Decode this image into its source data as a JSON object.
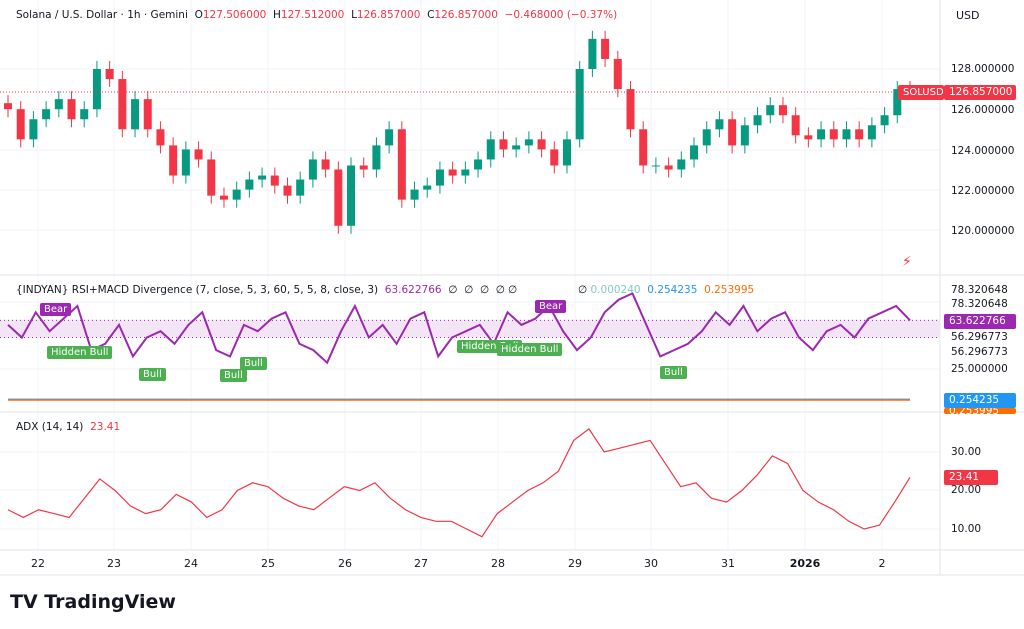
{
  "header": {
    "symbol": "Solana / U.S. Dollar · 1h · Gemini",
    "o_label": "O",
    "o": "127.506000",
    "h_label": "H",
    "h": "127.512000",
    "l_label": "L",
    "l": "126.857000",
    "c_label": "C",
    "c": "126.857000",
    "change": "−0.468000 (−0.37%)"
  },
  "currency": "USD",
  "price_tag": {
    "symbol": "SOLUSD",
    "value": "126.857000"
  },
  "colors": {
    "up": "#089981",
    "down": "#f23645",
    "rsi": "#9c27b0",
    "adx": "#f23645",
    "macd": "#2196f3",
    "signal": "#ff6d00"
  },
  "chart_data": [
    {
      "type": "candlestick",
      "title": "Solana / U.S. Dollar",
      "ylim": [
        118.5,
        130
      ],
      "y_ticks": [
        "128.000000",
        "126.000000",
        "124.000000",
        "122.000000",
        "120.000000"
      ],
      "closes": [
        126,
        124.5,
        125.5,
        126,
        126.5,
        125.5,
        126,
        128,
        127.5,
        125,
        126.5,
        125,
        124.2,
        122.7,
        124,
        123.5,
        121.7,
        121.5,
        122,
        122.5,
        122.7,
        122.2,
        121.7,
        122.5,
        123.5,
        123,
        120.2,
        123.2,
        123,
        124.2,
        125,
        121.5,
        122,
        122.2,
        123,
        122.7,
        123,
        123.5,
        124.5,
        124,
        124.2,
        124.5,
        124,
        123.2,
        124.5,
        128,
        129.5,
        128.5,
        127,
        125,
        123.2,
        123.2,
        123,
        123.5,
        124.2,
        125,
        125.5,
        124.2,
        125.2,
        125.7,
        126.2,
        125.7,
        124.7,
        124.5,
        125,
        124.5,
        125,
        124.5,
        125.2,
        125.7,
        127,
        126.857
      ]
    },
    {
      "type": "line",
      "title": "{INDYAN} RSI+MACD Divergence (7, close, 5, 3, 60, 5, 5, 8, close, 3)",
      "value": "63.622766",
      "na": [
        "∅",
        "∅",
        "∅",
        "∅",
        "∅",
        "∅"
      ],
      "macd_value": "0.000240",
      "v2": "0.254235",
      "v3": "0.253995",
      "y_ticks": [
        "78.320648",
        "78.320648",
        "56.296773",
        "56.296773",
        "25.000000"
      ],
      "last": "63.622766",
      "macd_tag": "0.254235",
      "signal_tag": "0.253995",
      "rsi": [
        60,
        50,
        70,
        55,
        65,
        75,
        40,
        45,
        60,
        35,
        50,
        55,
        45,
        60,
        70,
        40,
        35,
        60,
        55,
        65,
        70,
        45,
        40,
        30,
        55,
        75,
        50,
        60,
        45,
        65,
        70,
        35,
        50,
        55,
        60,
        45,
        70,
        60,
        65,
        75,
        55,
        40,
        50,
        70,
        80,
        85,
        60,
        35,
        40,
        45,
        55,
        70,
        60,
        75,
        55,
        65,
        70,
        50,
        40,
        55,
        60,
        50,
        65,
        70,
        75,
        63.6
      ],
      "markers": [
        "Bear",
        "Hidden Bull",
        "Bull",
        "Bull",
        "Bull",
        "Hidden Bull",
        "Hidden Bull",
        "Bear",
        "Bull"
      ]
    },
    {
      "type": "line",
      "title": "ADX (14, 14)",
      "value": "23.41",
      "y_ticks": [
        "30.00",
        "20.00",
        "10.00"
      ],
      "ylim": [
        3,
        40
      ],
      "values": [
        15,
        13,
        15,
        14,
        13,
        18,
        23,
        20,
        16,
        14,
        15,
        19,
        17,
        13,
        15,
        20,
        22,
        21,
        18,
        16,
        15,
        18,
        21,
        20,
        22,
        18,
        15,
        13,
        12,
        12,
        10,
        8,
        14,
        17,
        20,
        22,
        25,
        33,
        36,
        30,
        31,
        32,
        33,
        27,
        21,
        22,
        18,
        17,
        20,
        24,
        29,
        27,
        20,
        17,
        15,
        12,
        10,
        11,
        17,
        23.41
      ]
    }
  ],
  "x_ticks": [
    "22",
    "23",
    "24",
    "25",
    "26",
    "27",
    "28",
    "29",
    "30",
    "31",
    "2026",
    "2"
  ],
  "logo": "TradingView"
}
